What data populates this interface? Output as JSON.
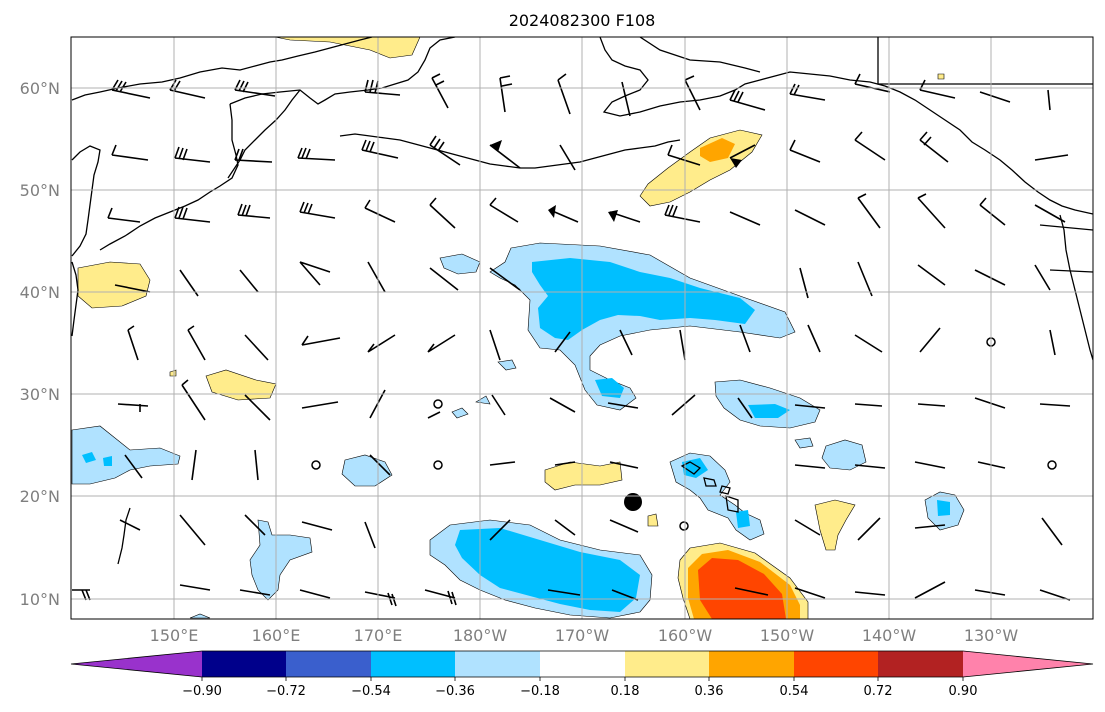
{
  "title": "2024082300 F108",
  "lat_labels": [
    "10°N",
    "20°N",
    "30°N",
    "40°N",
    "50°N",
    "60°N"
  ],
  "lon_labels": [
    "150°E",
    "160°E",
    "170°E",
    "180°W",
    "170°W",
    "160°W",
    "150°W",
    "140°W",
    "130°W"
  ],
  "colorbar": {
    "ticks": [
      "−0.90",
      "−0.72",
      "−0.54",
      "−0.36",
      "−0.18",
      "0.18",
      "0.36",
      "0.54",
      "0.72",
      "0.90"
    ],
    "colors": [
      "#9932cc",
      "#00008b",
      "#3a5fcd",
      "#00bfff",
      "#b0e2ff",
      "#ffffff",
      "#ffec8b",
      "#ffa500",
      "#ff4500",
      "#b22222",
      "#ff82ab"
    ]
  },
  "map": {
    "extent": {
      "lon_min": 140,
      "lon_max": 241,
      "lat_min": 8,
      "lat_max": 65
    },
    "fill_colors": {
      "neg_036": "#b0e2ff",
      "neg_054": "#00bfff",
      "pos_036": "#ffec8b",
      "pos_054": "#ffa500",
      "pos_072": "#ff4500"
    },
    "storm_marker": {
      "lon": 194.5,
      "lat": 19.3
    }
  }
}
